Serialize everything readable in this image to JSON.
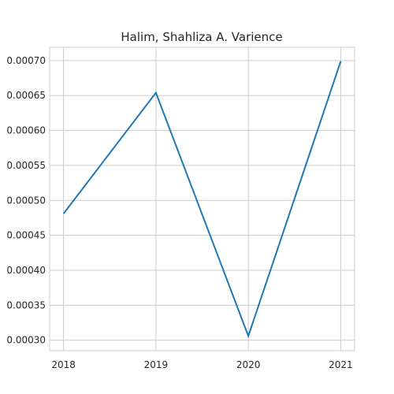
{
  "chart_data": {
    "type": "line",
    "title": "Halim, Shahliza A. Varience",
    "xlabel": "",
    "ylabel": "",
    "x": [
      2018,
      2019,
      2020,
      2021
    ],
    "x_tick_labels": [
      "2018",
      "2019",
      "2020",
      "2021"
    ],
    "series": [
      {
        "values": [
          0.000481,
          0.000654,
          0.000306,
          0.000699
        ]
      }
    ],
    "y_ticks": [
      0.0003,
      0.00035,
      0.0004,
      0.00045,
      0.0005,
      0.00055,
      0.0006,
      0.00065,
      0.0007
    ],
    "y_tick_labels": [
      "0.00030",
      "0.00035",
      "0.00040",
      "0.00045",
      "0.00050",
      "0.00055",
      "0.00060",
      "0.00065",
      "0.00070"
    ],
    "ylim": [
      0.000285,
      0.000719
    ],
    "xlim": [
      2017.85,
      2021.15
    ],
    "grid": true,
    "line_color": "#1f77b4",
    "grid_color": "#cccccc"
  }
}
